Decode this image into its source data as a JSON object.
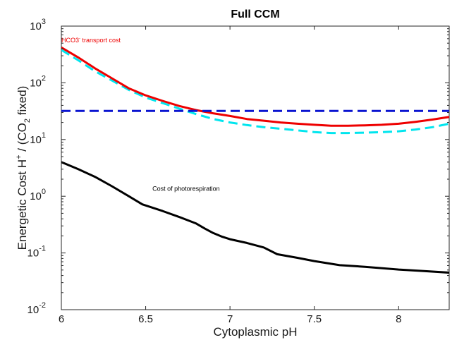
{
  "chart_data": {
    "type": "line",
    "title": "Full CCM",
    "xlabel": "Cytoplasmic pH",
    "ylabel": {
      "text": "Energetic Cost H",
      "sup": "+",
      "mid": " / (CO",
      "sub": "2",
      "end": " fixed)"
    },
    "xlim": [
      6,
      8.3
    ],
    "ylim": [
      0.01,
      1000
    ],
    "yscale": "log",
    "grid": false,
    "x_ticks": [
      "6",
      "6.5",
      "7",
      "7.5",
      "8"
    ],
    "x_tick_values": [
      6,
      6.5,
      7,
      7.5,
      8
    ],
    "y_ticks": [
      {
        "base": "10",
        "exp": "-2",
        "value": 0.01
      },
      {
        "base": "10",
        "exp": "-1",
        "value": 0.1
      },
      {
        "base": "10",
        "exp": "0",
        "value": 1
      },
      {
        "base": "10",
        "exp": "1",
        "value": 10
      },
      {
        "base": "10",
        "exp": "2",
        "value": 100
      },
      {
        "base": "10",
        "exp": "3",
        "value": 1000
      }
    ],
    "series": [
      {
        "color": "#00e5ee",
        "style": "dashed",
        "x": [
          6.0,
          6.1,
          6.2,
          6.3,
          6.4,
          6.5,
          6.6,
          6.7,
          6.8,
          6.9,
          7.0,
          7.1,
          7.2,
          7.3,
          7.4,
          7.5,
          7.6,
          7.7,
          7.8,
          7.9,
          8.0,
          8.1,
          8.2,
          8.3
        ],
        "y": [
          380,
          250,
          160,
          110,
          75,
          55,
          44,
          35,
          28,
          23,
          20,
          18,
          16.5,
          15.5,
          14.5,
          13.5,
          13,
          13,
          13.2,
          13.5,
          14,
          15,
          16.5,
          19
        ]
      },
      {
        "color": "#ee0000",
        "style": "solid",
        "x": [
          6.0,
          6.1,
          6.2,
          6.3,
          6.4,
          6.5,
          6.6,
          6.7,
          6.8,
          6.9,
          7.0,
          7.1,
          7.2,
          7.3,
          7.4,
          7.5,
          7.6,
          7.7,
          7.8,
          7.9,
          8.0,
          8.1,
          8.2,
          8.3
        ],
        "y": [
          420,
          280,
          180,
          120,
          80,
          60,
          48,
          39,
          33,
          29,
          26,
          23,
          21.5,
          20,
          19,
          18.2,
          17.5,
          17.5,
          17.8,
          18.2,
          19,
          20.5,
          22.5,
          25
        ]
      },
      {
        "color": "#0a14d0",
        "style": "dashed",
        "x": [
          6.0,
          8.3
        ],
        "y": [
          32,
          32
        ]
      },
      {
        "color": "#000000",
        "style": "solid",
        "x": [
          6.0,
          6.1,
          6.2,
          6.3,
          6.4,
          6.48,
          6.6,
          6.7,
          6.8,
          6.85,
          6.9,
          6.95,
          7.0,
          7.1,
          7.2,
          7.28,
          7.4,
          7.5,
          7.65,
          7.8,
          8.0,
          8.15,
          8.3
        ],
        "y": [
          4.0,
          3.0,
          2.2,
          1.5,
          1.0,
          0.72,
          0.55,
          0.43,
          0.33,
          0.27,
          0.225,
          0.195,
          0.175,
          0.15,
          0.125,
          0.095,
          0.082,
          0.072,
          0.061,
          0.057,
          0.051,
          0.048,
          0.045
        ]
      }
    ],
    "annotations": [
      {
        "id": "hco3",
        "text": "HCO3",
        "sup": "-",
        "rest": " transport cost",
        "color": "#ee0000",
        "x": 6.0,
        "y": 520
      },
      {
        "id": "photo",
        "text": "Cost of photorespiration",
        "color": "#000000",
        "x": 6.54,
        "y": 1.25
      }
    ]
  }
}
